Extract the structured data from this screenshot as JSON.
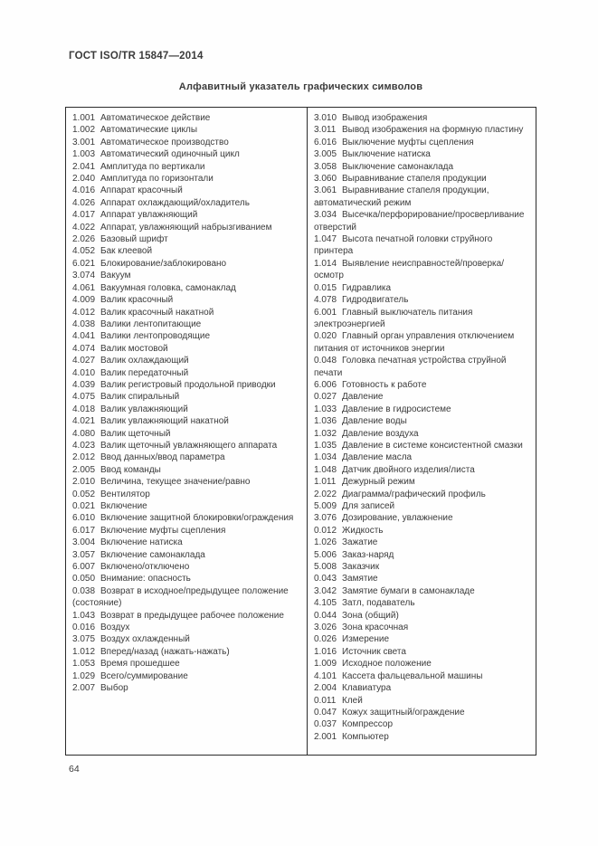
{
  "page": {
    "standard_ref": "ГОСТ ISO/TR 15847—2014",
    "title": "Алфавитный указатель графических символов",
    "page_number": "64"
  },
  "colors": {
    "text": "#3b3b3b",
    "border": "#2b2b2b",
    "background": "#fefefe"
  },
  "index": {
    "left_column": [
      {
        "code": "1.001",
        "label": "Автоматическое действие"
      },
      {
        "code": "1.002",
        "label": "Автоматические циклы"
      },
      {
        "code": "3.001",
        "label": "Автоматическое производство"
      },
      {
        "code": "1.003",
        "label": "Автоматический одиночный цикл"
      },
      {
        "code": "2.041",
        "label": "Амплитуда по вертикали"
      },
      {
        "code": "2.040",
        "label": "Амплитуда по горизонтали"
      },
      {
        "code": "4.016",
        "label": "Аппарат красочный"
      },
      {
        "code": "4.026",
        "label": "Аппарат охлаждающий/охладитель"
      },
      {
        "code": "4.017",
        "label": "Аппарат увлажняющий"
      },
      {
        "code": "4.022",
        "label": "Аппарат, увлажняющий набрызгиванием"
      },
      {
        "code": "2.026",
        "label": "Базовый шрифт"
      },
      {
        "code": "4.052",
        "label": "Бак клеевой"
      },
      {
        "code": "6.021",
        "label": "Блокирование/заблокировано"
      },
      {
        "code": "3.074",
        "label": "Вакуум"
      },
      {
        "code": "4.061",
        "label": "Вакуумная головка, самонаклад"
      },
      {
        "code": "4.009",
        "label": "Валик красочный"
      },
      {
        "code": "4.012",
        "label": "Валик красочный накатной"
      },
      {
        "code": "4.038",
        "label": "Валики лентопитающие"
      },
      {
        "code": "4.041",
        "label": "Валики лентопроводящие"
      },
      {
        "code": "4.074",
        "label": "Валик мостовой"
      },
      {
        "code": "4.027",
        "label": "Валик охлаждающий"
      },
      {
        "code": "4.010",
        "label": "Валик передаточный"
      },
      {
        "code": "4.039",
        "label": "Валик регистровый продольной приводки"
      },
      {
        "code": "4.075",
        "label": "Валик спиральный"
      },
      {
        "code": "4.018",
        "label": "Валик увлажняющий"
      },
      {
        "code": "4.021",
        "label": "Валик увлажняющий накатной"
      },
      {
        "code": "4.080",
        "label": "Валик щеточный"
      },
      {
        "code": "4.023",
        "label": "Валик щеточный увлажняющего аппарата"
      },
      {
        "code": "2.012",
        "label": "Ввод данных/ввод параметра"
      },
      {
        "code": "2.005",
        "label": "Ввод команды"
      },
      {
        "code": "2.010",
        "label": "Величина, текущее значение/равно"
      },
      {
        "code": "0.052",
        "label": "Вентилятор"
      },
      {
        "code": "0.021",
        "label": "Включение"
      },
      {
        "code": "6.010",
        "label": "Включение защитной блокировки/ограждения"
      },
      {
        "code": "6.017",
        "label": "Включение муфты сцепления"
      },
      {
        "code": "3.004",
        "label": "Включение натиска"
      },
      {
        "code": "3.057",
        "label": "Включение самонаклада"
      },
      {
        "code": "6.007",
        "label": "Включено/отключено"
      },
      {
        "code": "0.050",
        "label": "Внимание: опасность"
      },
      {
        "code": "0.038",
        "label": "Возврат в исходное/предыдущее положение (состояние)"
      },
      {
        "code": "1.043",
        "label": "Возврат в предыдущее рабочее положение"
      },
      {
        "code": "0.016",
        "label": "Воздух"
      },
      {
        "code": "3.075",
        "label": "Воздух охлажденный"
      },
      {
        "code": "1.012",
        "label": "Вперед/назад (нажать-нажать)"
      },
      {
        "code": "1.053",
        "label": "Время прошедшее"
      },
      {
        "code": "1.029",
        "label": "Всего/суммирование"
      },
      {
        "code": "2.007",
        "label": "Выбор"
      }
    ],
    "right_column": [
      {
        "code": "3.010",
        "label": "Вывод изображения"
      },
      {
        "code": "3.011",
        "label": "Вывод изображения на формную пластину"
      },
      {
        "code": "6.016",
        "label": "Выключение муфты сцепления"
      },
      {
        "code": "3.005",
        "label": "Выключение натиска"
      },
      {
        "code": "3.058",
        "label": "Выключение самонаклада"
      },
      {
        "code": "3.060",
        "label": "Выравнивание стапеля продукции"
      },
      {
        "code": "3.061",
        "label": "Выравнивание стапеля продукции, автоматиче­ский режим"
      },
      {
        "code": "3.034",
        "label": "Высечка/перфорирование/просверливание отверстий"
      },
      {
        "code": "1.047",
        "label": "Высота печатной головки струйного принтера"
      },
      {
        "code": "1.014",
        "label": "Выявление неисправностей/проверка/осмотр"
      },
      {
        "code": "0.015",
        "label": "Гидравлика"
      },
      {
        "code": "4.078",
        "label": "Гидродвигатель"
      },
      {
        "code": "6.001",
        "label": "Главный выключатель питания электроэнергией"
      },
      {
        "code": "0.020",
        "label": "Главный орган управления отключением питания от источников энергии"
      },
      {
        "code": "0.048",
        "label": "Головка печатная устройства струйной печати"
      },
      {
        "code": "6.006",
        "label": "Готовность к работе"
      },
      {
        "code": "0.027",
        "label": "Давление"
      },
      {
        "code": "1.033",
        "label": "Давление в гидросистеме"
      },
      {
        "code": "1.036",
        "label": "Давление воды"
      },
      {
        "code": "1.032",
        "label": "Давление воздуха"
      },
      {
        "code": "1.035",
        "label": "Давление в системе консистентной смазки"
      },
      {
        "code": "1.034",
        "label": "Давление масла"
      },
      {
        "code": "1.048",
        "label": "Датчик двойного изделия/листа"
      },
      {
        "code": "1.011",
        "label": "Дежурный режим"
      },
      {
        "code": "2.022",
        "label": "Диаграмма/графический профиль"
      },
      {
        "code": "5.009",
        "label": "Для записей"
      },
      {
        "code": "3.076",
        "label": "Дозирование, увлажнение"
      },
      {
        "code": "0.012",
        "label": "Жидкость"
      },
      {
        "code": "1.026",
        "label": "Зажатие"
      },
      {
        "code": "5.006",
        "label": "Заказ-наряд"
      },
      {
        "code": "5.008",
        "label": "Заказчик"
      },
      {
        "code": "0.043",
        "label": "Замятие"
      },
      {
        "code": "3.042",
        "label": "Замятие бумаги в самонакладе"
      },
      {
        "code": "4.105",
        "label": "Затл, подаватель"
      },
      {
        "code": "0.044",
        "label": "Зона (общий)"
      },
      {
        "code": "3.026",
        "label": "Зона красочная"
      },
      {
        "code": "0.026",
        "label": "Измерение"
      },
      {
        "code": "1.016",
        "label": "Источник света"
      },
      {
        "code": "1.009",
        "label": "Исходное положение"
      },
      {
        "code": "4.101",
        "label": "Кассета фальцевальной машины"
      },
      {
        "code": "2.004",
        "label": "Клавиатура"
      },
      {
        "code": "0.011",
        "label": "Клей"
      },
      {
        "code": "0.047",
        "label": "Кожух защитный/ограждение"
      },
      {
        "code": "0.037",
        "label": "Компрессор"
      },
      {
        "code": "2.001",
        "label": "Компьютер"
      }
    ]
  }
}
